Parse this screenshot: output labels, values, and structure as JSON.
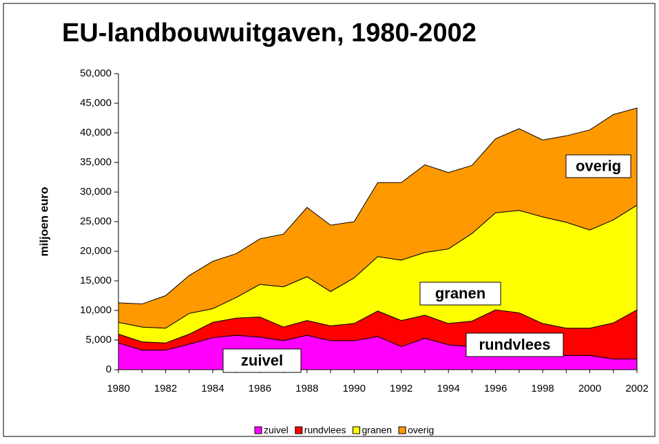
{
  "chart_data": {
    "type": "stacked_area",
    "title": "EU-landbouwuitgaven, 1980-2002",
    "y_label": "miljoen euro",
    "x": [
      1980,
      1981,
      1982,
      1983,
      1984,
      1985,
      1986,
      1987,
      1988,
      1989,
      1990,
      1991,
      1992,
      1993,
      1994,
      1995,
      1996,
      1997,
      1998,
      1999,
      2000,
      2001,
      2002
    ],
    "series": [
      {
        "name": "zuivel",
        "color": "#ff00ff",
        "values": [
          4500,
          3300,
          3300,
          4300,
          5400,
          5800,
          5500,
          4900,
          5800,
          4900,
          4900,
          5600,
          3900,
          5300,
          4200,
          3900,
          3500,
          3000,
          2800,
          2400,
          2400,
          1800,
          1800
        ]
      },
      {
        "name": "rundvlees",
        "color": "#ff0000",
        "values": [
          1500,
          1400,
          1200,
          1700,
          2600,
          2900,
          3400,
          2300,
          2500,
          2500,
          2900,
          4300,
          4400,
          3900,
          3600,
          4300,
          6600,
          6600,
          5000,
          4600,
          4600,
          6100,
          8300
        ]
      },
      {
        "name": "granen",
        "color": "#ffff00",
        "values": [
          2000,
          2500,
          2500,
          3500,
          2300,
          3500,
          5500,
          6800,
          7400,
          5800,
          7700,
          9200,
          10200,
          10600,
          12600,
          14800,
          16400,
          17300,
          18000,
          17900,
          16600,
          17400,
          17700
        ]
      },
      {
        "name": "overig",
        "color": "#ff9900",
        "values": [
          3300,
          3900,
          5500,
          6400,
          8000,
          7400,
          7700,
          8900,
          11700,
          11200,
          9500,
          12500,
          13100,
          14800,
          12900,
          11500,
          12500,
          13800,
          13000,
          14600,
          16900,
          17800,
          16400
        ]
      }
    ],
    "annotations": [
      "overig",
      "granen",
      "rundvlees",
      "zuivel"
    ],
    "xlim": [
      1980,
      2002
    ],
    "xticks": [
      1980,
      1982,
      1984,
      1986,
      1988,
      1990,
      1992,
      1994,
      1996,
      1998,
      2000,
      2002
    ],
    "ylim": [
      0,
      50000
    ],
    "yticks": [
      0,
      {
        "value": 5000,
        "label": "5,000"
      },
      {
        "value": 10000,
        "label": "10,000"
      },
      {
        "value": 15000,
        "label": "15,000"
      },
      {
        "value": 20000,
        "label": "20,000"
      },
      {
        "value": 25000,
        "label": "25,000"
      },
      {
        "value": 30000,
        "label": "30,000"
      },
      {
        "value": 35000,
        "label": "35,000"
      },
      {
        "value": 40000,
        "label": "40,000"
      },
      {
        "value": 45000,
        "label": "45,000"
      },
      {
        "value": 50000,
        "label": "50,000"
      }
    ],
    "legend": "bottom"
  }
}
